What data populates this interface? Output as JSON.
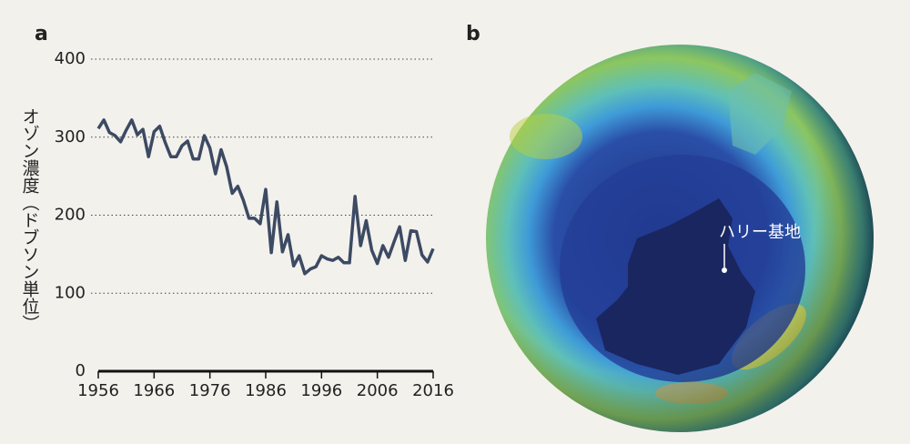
{
  "chart_data": {
    "type": "line",
    "panel_label": "a",
    "ylabel": "オゾン濃度（ドブソン単位）",
    "x": [
      1956,
      1957,
      1958,
      1959,
      1960,
      1961,
      1962,
      1963,
      1964,
      1965,
      1966,
      1967,
      1968,
      1969,
      1970,
      1971,
      1972,
      1973,
      1974,
      1975,
      1976,
      1977,
      1978,
      1979,
      1980,
      1981,
      1982,
      1983,
      1984,
      1985,
      1986,
      1987,
      1988,
      1989,
      1990,
      1991,
      1992,
      1993,
      1994,
      1995,
      1996,
      1997,
      1998,
      1999,
      2000,
      2001,
      2002,
      2003,
      2004,
      2005,
      2006,
      2007,
      2008,
      2009,
      2010,
      2011,
      2012,
      2013,
      2014,
      2015,
      2016
    ],
    "values": [
      311,
      322,
      306,
      302,
      294,
      309,
      322,
      303,
      310,
      275,
      307,
      314,
      293,
      275,
      275,
      289,
      295,
      272,
      272,
      302,
      286,
      253,
      284,
      262,
      228,
      237,
      219,
      196,
      196,
      189,
      233,
      152,
      217,
      153,
      175,
      135,
      148,
      125,
      131,
      134,
      148,
      144,
      142,
      146,
      139,
      139,
      224,
      161,
      193,
      155,
      138,
      161,
      146,
      166,
      185,
      142,
      180,
      179,
      149,
      140,
      157
    ],
    "color": "#3c4a63",
    "xlim": [
      1956,
      2016
    ],
    "xticks": [
      1956,
      1966,
      1976,
      1986,
      1996,
      2006,
      2016
    ],
    "ylim": [
      0,
      400
    ],
    "yticks": [
      0,
      100,
      200,
      300,
      400
    ],
    "grid": true
  },
  "image": {
    "panel_label": "b",
    "annotation": "ハリー基地"
  }
}
